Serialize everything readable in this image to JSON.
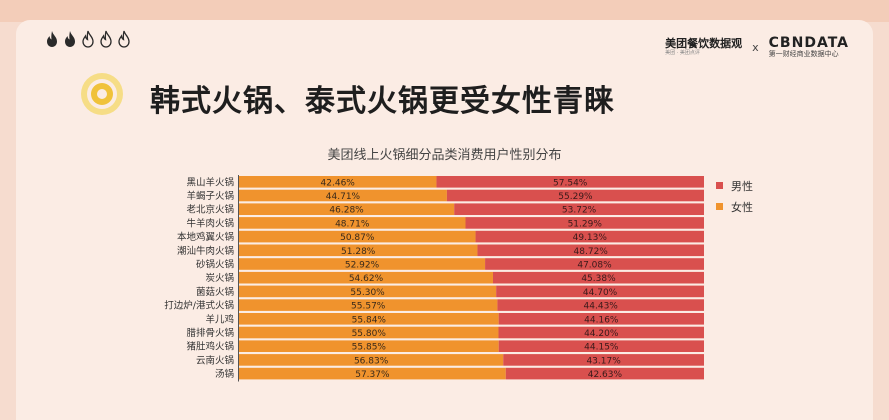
{
  "header": {
    "title": "韩式火锅、泰式火锅更受女性青睐",
    "brand_left": "美团餐饮数据观",
    "brand_left_sub": "美团 · 美团点评",
    "brand_sep": "x",
    "brand_right": "CBNDATA",
    "brand_right_sub": "第一财经商业数据中心"
  },
  "colors": {
    "male": "#d9504e",
    "female": "#f0932d",
    "background": "#fbece4"
  },
  "icons": [
    "flame-icon",
    "flame-icon",
    "flame-outline-icon",
    "flame-outline-icon",
    "flame-outline-icon",
    "target-icon"
  ],
  "chart_data": {
    "type": "bar",
    "stacked": true,
    "orientation": "horizontal",
    "title": "美团线上火锅细分品类消费用户性别分布",
    "categories": [
      "黑山羊火锅",
      "羊蝎子火锅",
      "老北京火锅",
      "牛羊肉火锅",
      "本地鸡翼火锅",
      "潮汕牛肉火锅",
      "砂锅火锅",
      "炭火锅",
      "菌菇火锅",
      "打边炉/港式火锅",
      "羊儿鸡",
      "腊排骨火锅",
      "猪肚鸡火锅",
      "云南火锅",
      "汤锅"
    ],
    "series": [
      {
        "name": "女性",
        "values": [
          42.46,
          44.71,
          46.28,
          48.71,
          50.87,
          51.28,
          52.92,
          54.62,
          55.3,
          55.57,
          55.84,
          55.8,
          55.85,
          56.83,
          57.37
        ]
      },
      {
        "name": "男性",
        "values": [
          57.54,
          55.29,
          53.72,
          51.29,
          49.13,
          48.72,
          47.08,
          45.38,
          44.7,
          44.43,
          44.16,
          44.2,
          44.15,
          43.17,
          42.63
        ]
      }
    ],
    "value_labels": {
      "female": [
        "42.46%",
        "44.71%",
        "46.28%",
        "48.71%",
        "50.87%",
        "51.28%",
        "52.92%",
        "54.62%",
        "55.30%",
        "55.57%",
        "55.84%",
        "55.80%",
        "55.85%",
        "56.83%",
        "57.37%"
      ],
      "male": [
        "57.54%",
        "55.29%",
        "53.72%",
        "51.29%",
        "49.13%",
        "48.72%",
        "47.08%",
        "45.38%",
        "44.70%",
        "44.43%",
        "44.16%",
        "44.20%",
        "44.15%",
        "43.17%",
        "42.63%"
      ]
    },
    "legend": [
      {
        "label": "男性",
        "color": "#d9504e"
      },
      {
        "label": "女性",
        "color": "#f0932d"
      }
    ],
    "xlim": [
      0,
      100
    ],
    "legend_position": "right",
    "grid": false
  }
}
